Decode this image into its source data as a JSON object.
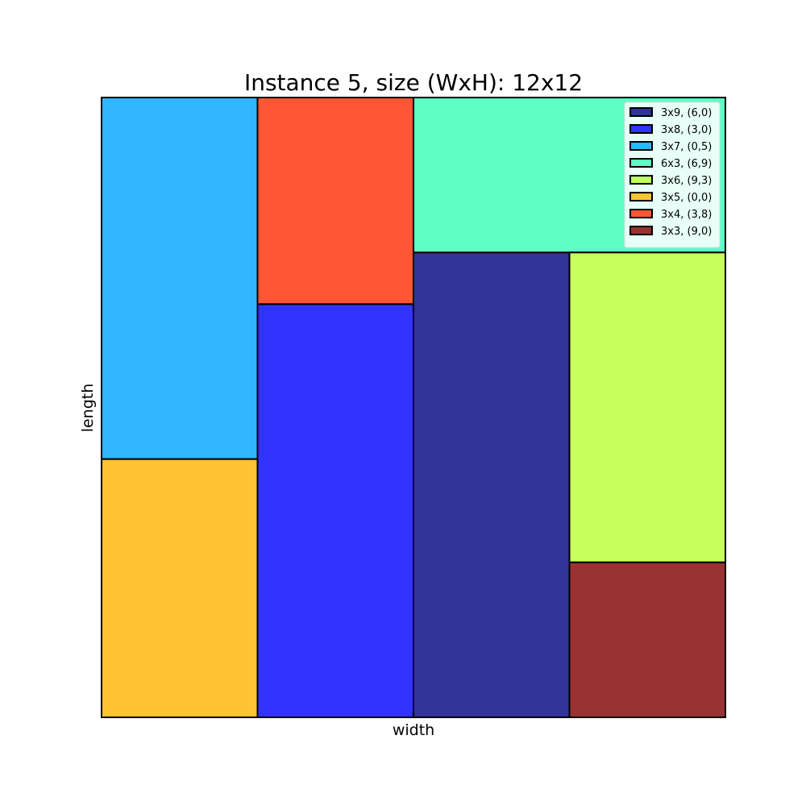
{
  "chart_data": {
    "type": "rectangle-packing",
    "title": "Instance 5, size (WxH): 12x12",
    "xlabel": "width",
    "ylabel": "length",
    "container": {
      "width": 12,
      "height": 12
    },
    "xlim": [
      0,
      12
    ],
    "ylim": [
      0,
      12
    ],
    "grid": false,
    "legend_position": "top-right",
    "rectangles": [
      {
        "label": "3x9, (6,0)",
        "w": 3,
        "h": 9,
        "x": 6,
        "y": 0,
        "color": "#000080"
      },
      {
        "label": "3x8, (3,0)",
        "w": 3,
        "h": 8,
        "x": 3,
        "y": 0,
        "color": "#0000ff"
      },
      {
        "label": "3x7, (0,5)",
        "w": 3,
        "h": 7,
        "x": 0,
        "y": 5,
        "color": "#00a4ff"
      },
      {
        "label": "6x3, (6,9)",
        "w": 6,
        "h": 3,
        "x": 6,
        "y": 9,
        "color": "#36ffb8"
      },
      {
        "label": "3x6, (9,3)",
        "w": 3,
        "h": 6,
        "x": 9,
        "y": 3,
        "color": "#b8ff36"
      },
      {
        "label": "3x5, (0,0)",
        "w": 3,
        "h": 5,
        "x": 0,
        "y": 0,
        "color": "#ffb400"
      },
      {
        "label": "3x4, (3,8)",
        "w": 3,
        "h": 4,
        "x": 3,
        "y": 8,
        "color": "#ff2c00"
      },
      {
        "label": "3x3, (9,0)",
        "w": 3,
        "h": 3,
        "x": 9,
        "y": 0,
        "color": "#800000"
      }
    ]
  }
}
